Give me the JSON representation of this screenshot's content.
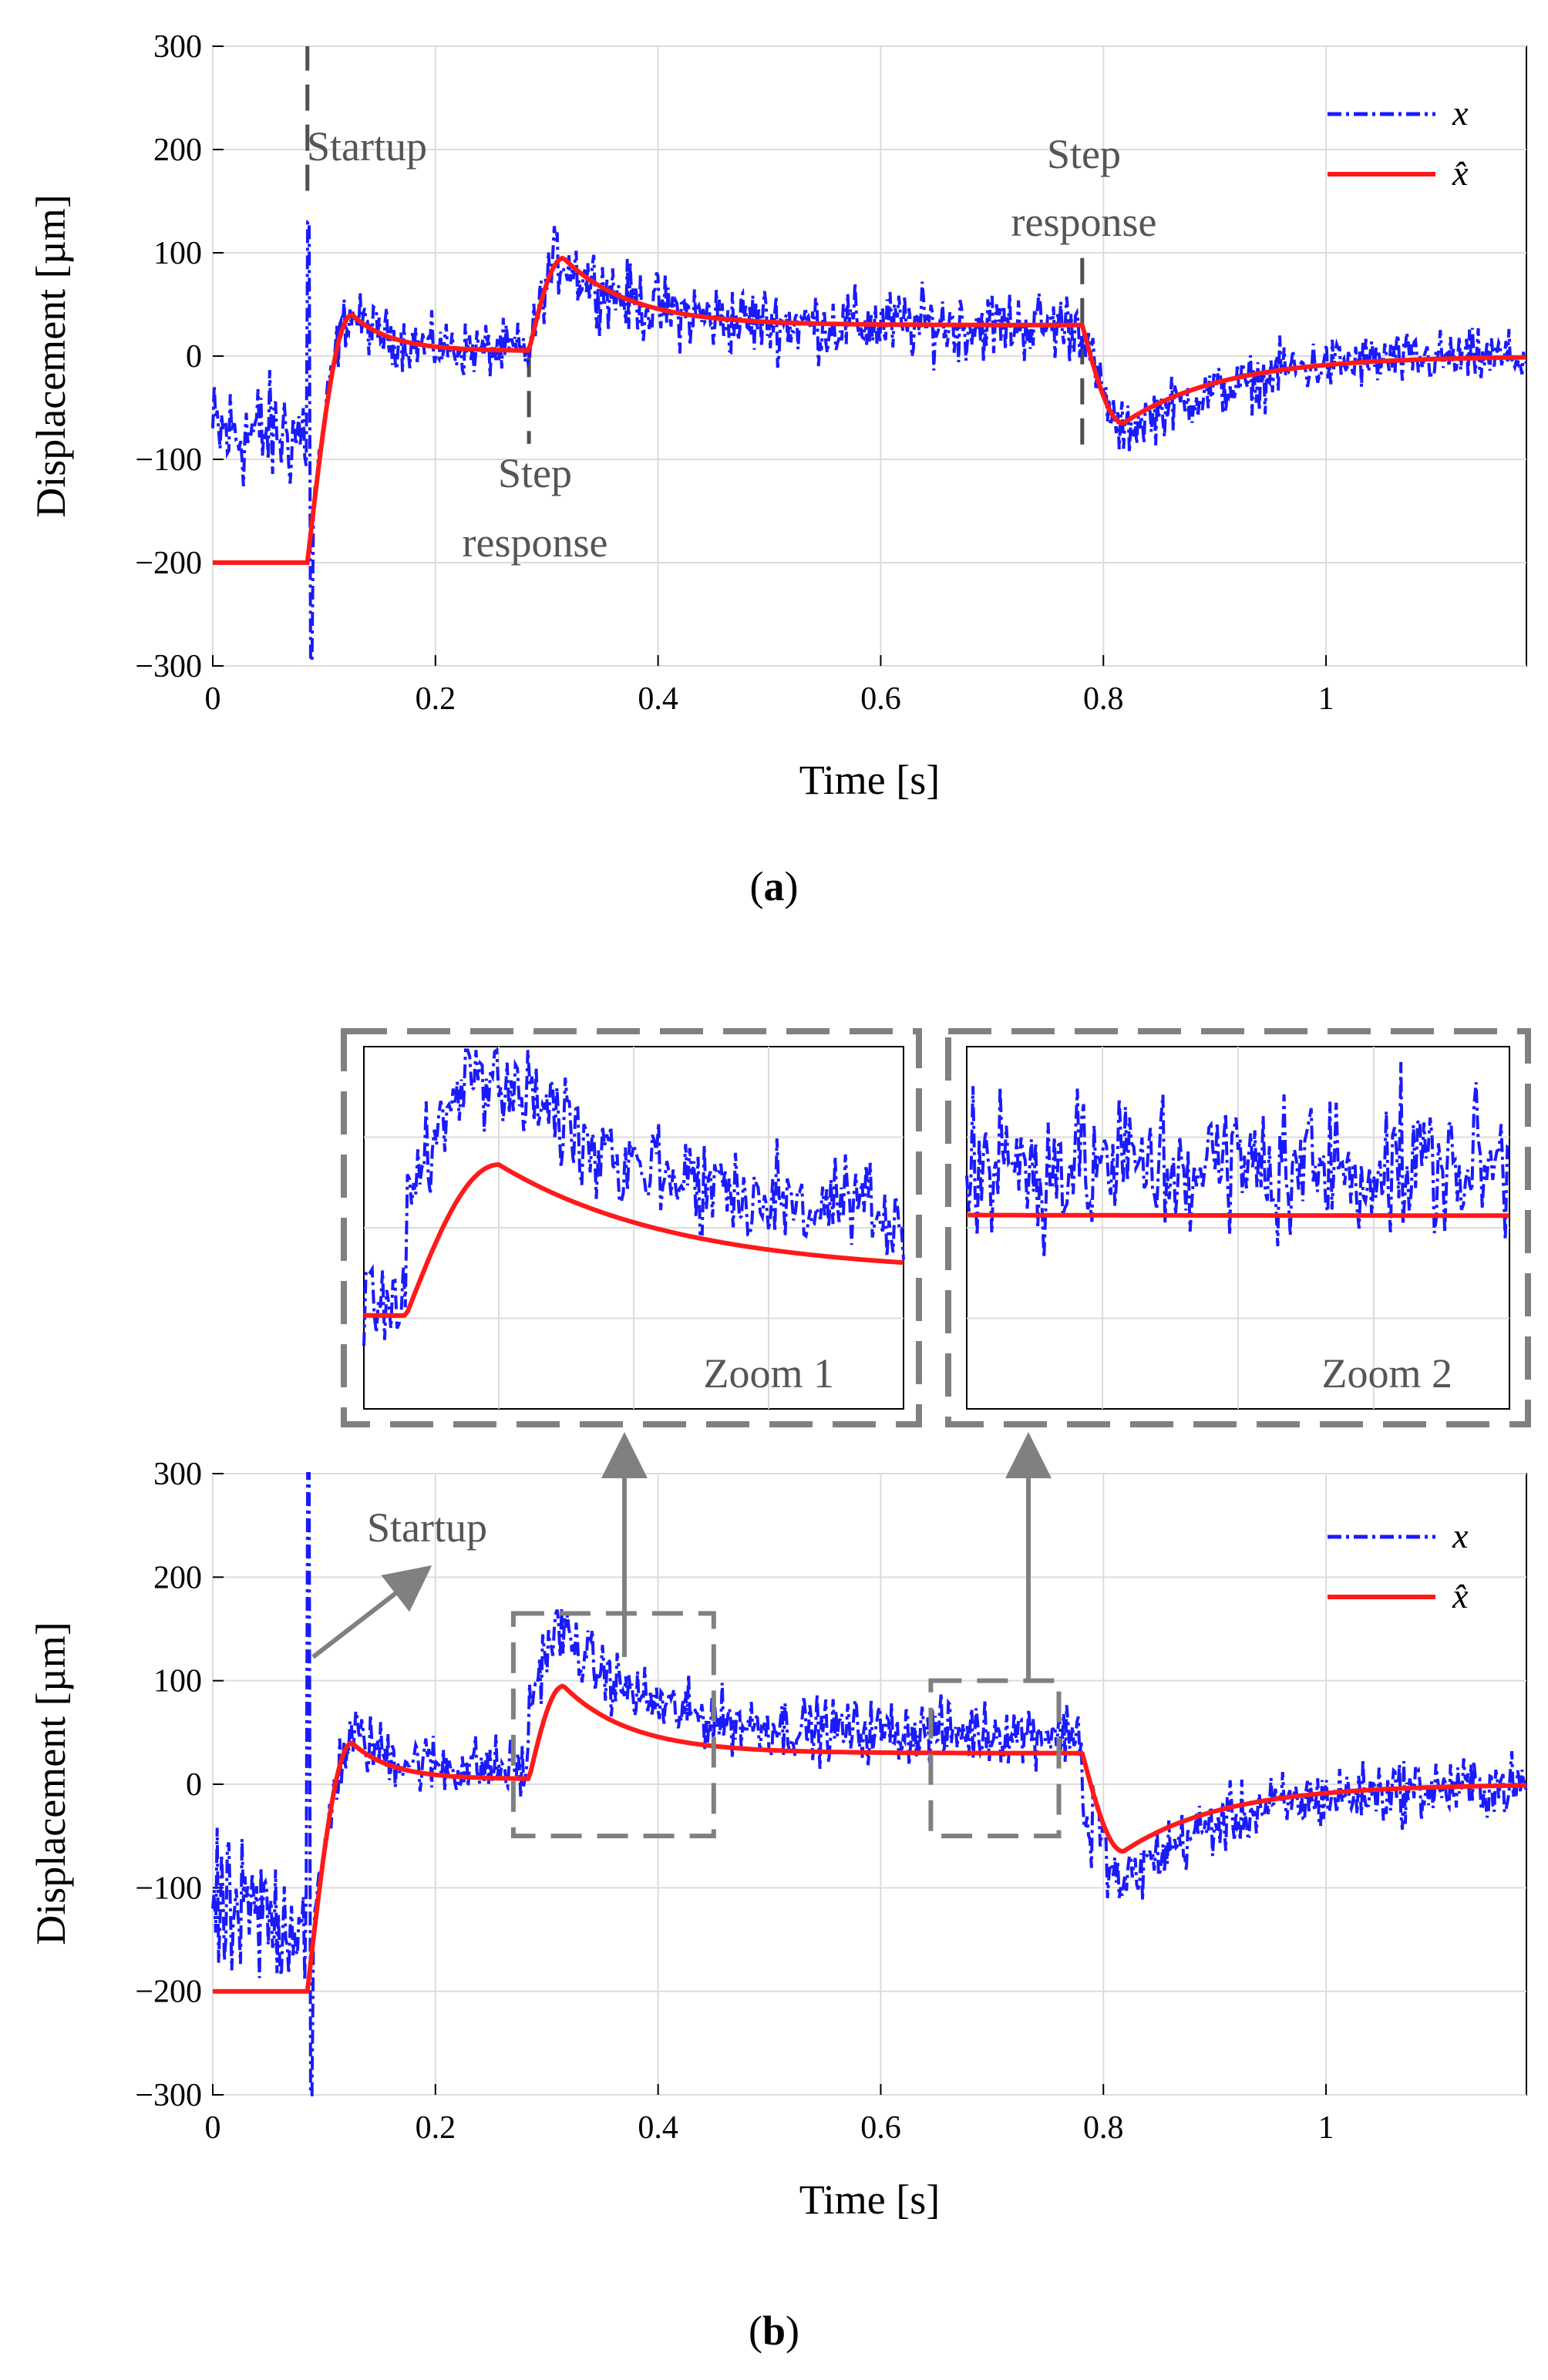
{
  "figure": {
    "caption_a": "(a)",
    "caption_a_letter": "a",
    "caption_b": "(b)",
    "caption_b_letter": "b",
    "colors": {
      "x": "#1a1aff",
      "xhat": "#ff1a1a",
      "annotation": "#666666"
    }
  },
  "chart_data": [
    {
      "id": "a",
      "type": "line",
      "xlabel": "Time [s]",
      "ylabel": "Displacement  [µm]",
      "xlim": [
        0,
        1.18
      ],
      "ylim": [
        -300,
        300
      ],
      "xticks": [
        0,
        0.2,
        0.4,
        0.6,
        0.8,
        1
      ],
      "xtick_labels": [
        "0",
        "0.2",
        "0.4",
        "0.6",
        "0.8",
        "1"
      ],
      "yticks": [
        -300,
        -200,
        -100,
        0,
        100,
        200,
        300
      ],
      "ytick_labels": [
        "−300",
        "−200",
        "−100",
        "0",
        "100",
        "200",
        "300"
      ],
      "grid": true,
      "legend": {
        "position": "top-right",
        "entries": [
          "x",
          "x̂"
        ]
      },
      "series": [
        {
          "name": "x",
          "style": "dash-dot",
          "description": "measured displacement (noisy)"
        },
        {
          "name": "x̂",
          "style": "solid",
          "description": "estimated displacement"
        }
      ],
      "events": [
        {
          "time": 0.085,
          "label": "Startup"
        },
        {
          "time": 0.284,
          "label": "Step response"
        },
        {
          "time": 0.781,
          "label": "Step response"
        }
      ],
      "annotations": {
        "startup": "Startup",
        "step1_line1": "Step",
        "step1_line2": "response",
        "step2_line1": "Step",
        "step2_line2": "response"
      }
    },
    {
      "id": "b",
      "type": "line",
      "xlabel": "Time [s]",
      "ylabel": "Displacement  [µm]",
      "xlim": [
        0,
        1.18
      ],
      "ylim": [
        -300,
        300
      ],
      "xticks": [
        0,
        0.2,
        0.4,
        0.6,
        0.8,
        1
      ],
      "xtick_labels": [
        "0",
        "0.2",
        "0.4",
        "0.6",
        "0.8",
        "1"
      ],
      "yticks": [
        -300,
        -200,
        -100,
        0,
        100,
        200,
        300
      ],
      "ytick_labels": [
        "−300",
        "−200",
        "−100",
        "0",
        "100",
        "200",
        "300"
      ],
      "grid": true,
      "legend": {
        "position": "top-right",
        "entries": [
          "x",
          "x̂"
        ]
      },
      "series": [
        {
          "name": "x",
          "style": "dash-dot",
          "description": "measured displacement (noisy, offset)"
        },
        {
          "name": "x̂",
          "style": "solid",
          "description": "estimated displacement"
        }
      ],
      "zoom_regions": [
        {
          "label": "Zoom 1",
          "xrange": [
            0.27,
            0.45
          ],
          "yrange": [
            -50,
            165
          ]
        },
        {
          "label": "Zoom 2",
          "xrange": [
            0.645,
            0.76
          ],
          "yrange": [
            -50,
            100
          ]
        }
      ],
      "annotations": {
        "startup": "Startup"
      }
    }
  ]
}
